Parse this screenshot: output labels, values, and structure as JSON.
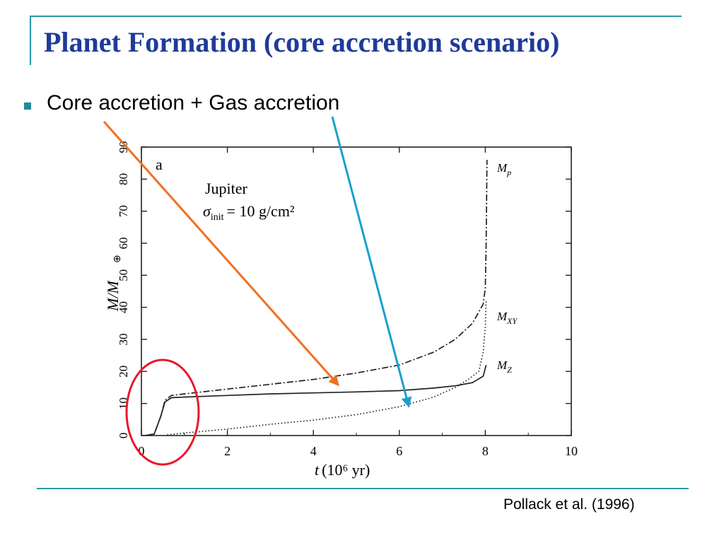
{
  "slide": {
    "title": "Planet Formation (core accretion scenario)",
    "bullet": "Core accretion + Gas accretion",
    "citation": "Pollack et al. (1996)"
  },
  "colors": {
    "title": "#1f3b99",
    "accent_lines": "#2a9aa6",
    "bullet_marker": "#1e8d99",
    "arrow_core": "#f07020",
    "arrow_gas": "#1aa0cc",
    "highlight_circle": "#e8182a"
  },
  "chart_data": {
    "type": "line",
    "panel_label": "a",
    "annotation_line1": "Jupiter",
    "annotation_line2": "= 10 g/cm²",
    "xlabel": "(10⁶ yr)",
    "ylabel": "M/M",
    "xlim": [
      0,
      10
    ],
    "ylim": [
      0,
      90
    ],
    "xticks": [
      0,
      2,
      4,
      6,
      8,
      10
    ],
    "yticks": [
      0,
      10,
      20,
      30,
      40,
      50,
      60,
      70,
      80,
      90
    ],
    "grid": false,
    "series": [
      {
        "name": "Mp",
        "style": "dash-dot",
        "points": [
          [
            0.1,
            0
          ],
          [
            0.3,
            0.5
          ],
          [
            0.45,
            6
          ],
          [
            0.55,
            11
          ],
          [
            0.7,
            12.5
          ],
          [
            1,
            13
          ],
          [
            2,
            14.5
          ],
          [
            3,
            16
          ],
          [
            4,
            17.5
          ],
          [
            5,
            19.5
          ],
          [
            6,
            22
          ],
          [
            6.8,
            26
          ],
          [
            7.3,
            30
          ],
          [
            7.7,
            35
          ],
          [
            7.95,
            41
          ],
          [
            8.0,
            46
          ],
          [
            8.02,
            60
          ],
          [
            8.04,
            86
          ]
        ]
      },
      {
        "name": "MXY",
        "style": "dotted",
        "points": [
          [
            0.6,
            0.2
          ],
          [
            1,
            0.8
          ],
          [
            2,
            2
          ],
          [
            3,
            3.5
          ],
          [
            4,
            4.8
          ],
          [
            5,
            6.5
          ],
          [
            6,
            9
          ],
          [
            6.8,
            12
          ],
          [
            7.3,
            15
          ],
          [
            7.6,
            17.5
          ],
          [
            7.85,
            20
          ],
          [
            7.95,
            26
          ],
          [
            8.0,
            34
          ],
          [
            8.02,
            42
          ]
        ]
      },
      {
        "name": "Mz",
        "style": "solid",
        "points": [
          [
            0.1,
            0
          ],
          [
            0.3,
            0.5
          ],
          [
            0.45,
            6
          ],
          [
            0.55,
            10.5
          ],
          [
            0.7,
            11.8
          ],
          [
            1,
            12
          ],
          [
            2,
            12.5
          ],
          [
            3,
            13
          ],
          [
            4,
            13.3
          ],
          [
            5,
            13.6
          ],
          [
            6,
            14
          ],
          [
            6.8,
            14.8
          ],
          [
            7.3,
            15.5
          ],
          [
            7.7,
            16.5
          ],
          [
            7.95,
            18.5
          ],
          [
            8.02,
            22
          ]
        ]
      }
    ]
  }
}
